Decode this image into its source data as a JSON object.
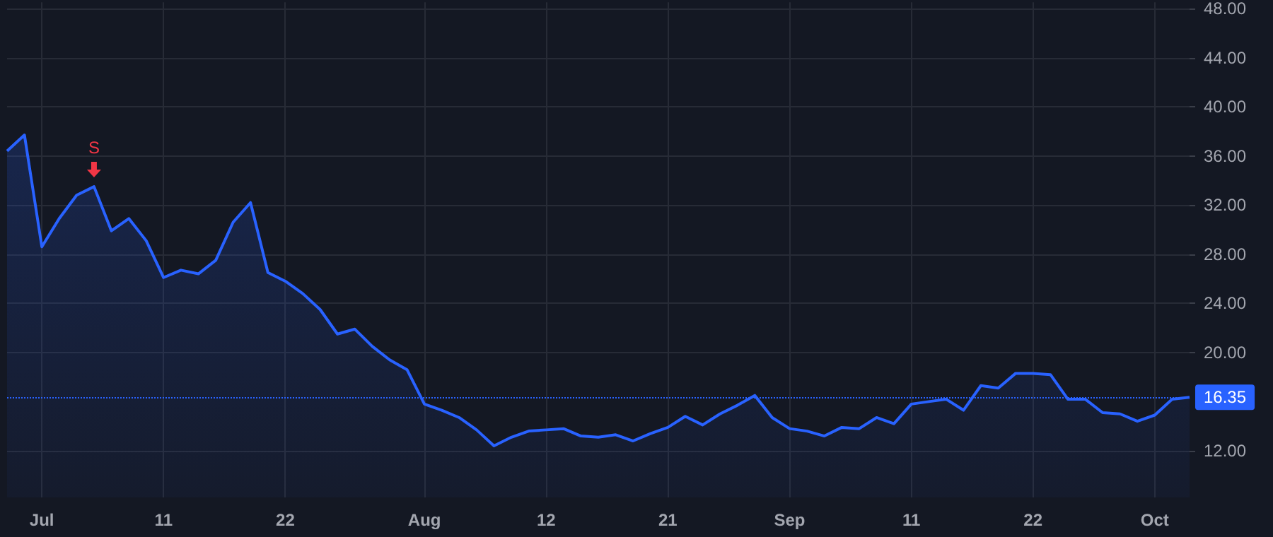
{
  "chart_data": {
    "type": "area",
    "categories": [
      null,
      null,
      "Jul",
      null,
      null,
      null,
      null,
      null,
      null,
      "11",
      null,
      null,
      null,
      null,
      null,
      null,
      "22",
      null,
      null,
      null,
      null,
      null,
      null,
      null,
      "Aug",
      null,
      null,
      null,
      null,
      null,
      null,
      "12",
      null,
      null,
      null,
      null,
      null,
      null,
      "21",
      null,
      null,
      null,
      null,
      null,
      null,
      "Sep",
      null,
      null,
      null,
      null,
      null,
      null,
      "11",
      null,
      null,
      null,
      null,
      null,
      null,
      "22",
      null,
      null,
      null,
      null,
      null,
      null,
      "Oct",
      null,
      null
    ],
    "series": [
      {
        "color": "#2962ff",
        "values": [
          36.4,
          37.7,
          28.6,
          30.9,
          32.8,
          33.5,
          29.9,
          30.9,
          29.1,
          26.1,
          26.7,
          26.4,
          27.5,
          30.6,
          32.2,
          26.5,
          25.8,
          24.8,
          23.5,
          21.5,
          21.9,
          20.5,
          19.4,
          18.6,
          15.8,
          15.3,
          14.7,
          13.7,
          12.4,
          13.1,
          13.6,
          13.7,
          13.8,
          13.2,
          13.1,
          13.3,
          12.8,
          13.4,
          13.9,
          14.8,
          14.1,
          15.0,
          15.7,
          16.5,
          14.7,
          13.8,
          13.6,
          13.2,
          13.9,
          13.8,
          14.7,
          14.2,
          15.8,
          16.0,
          16.2,
          15.3,
          17.3,
          17.1,
          18.3,
          18.3,
          18.2,
          16.2,
          16.2,
          15.1,
          15.0,
          14.4,
          14.9,
          16.2,
          16.35
        ]
      }
    ],
    "ylim": [
      8.2,
      48.5
    ],
    "yticks": [
      {
        "value": 12,
        "label": "12.00"
      },
      {
        "value": 20,
        "label": "20.00"
      },
      {
        "value": 24,
        "label": "24.00"
      },
      {
        "value": 28,
        "label": "28.00"
      },
      {
        "value": 32,
        "label": "32.00"
      },
      {
        "value": 36,
        "label": "36.00"
      },
      {
        "value": 40,
        "label": "40.00"
      },
      {
        "value": 44,
        "label": "44.00"
      },
      {
        "value": 48,
        "label": "48.00"
      }
    ],
    "ref_lines": [
      {
        "axis": "y",
        "value": 16.35,
        "label": "16.35",
        "color": "#2962ff",
        "line_style": "dotted"
      }
    ],
    "annotations": [
      {
        "text": "S",
        "y": 33.5
      }
    ],
    "grid": true,
    "marker": "none",
    "line_style": "solid"
  }
}
